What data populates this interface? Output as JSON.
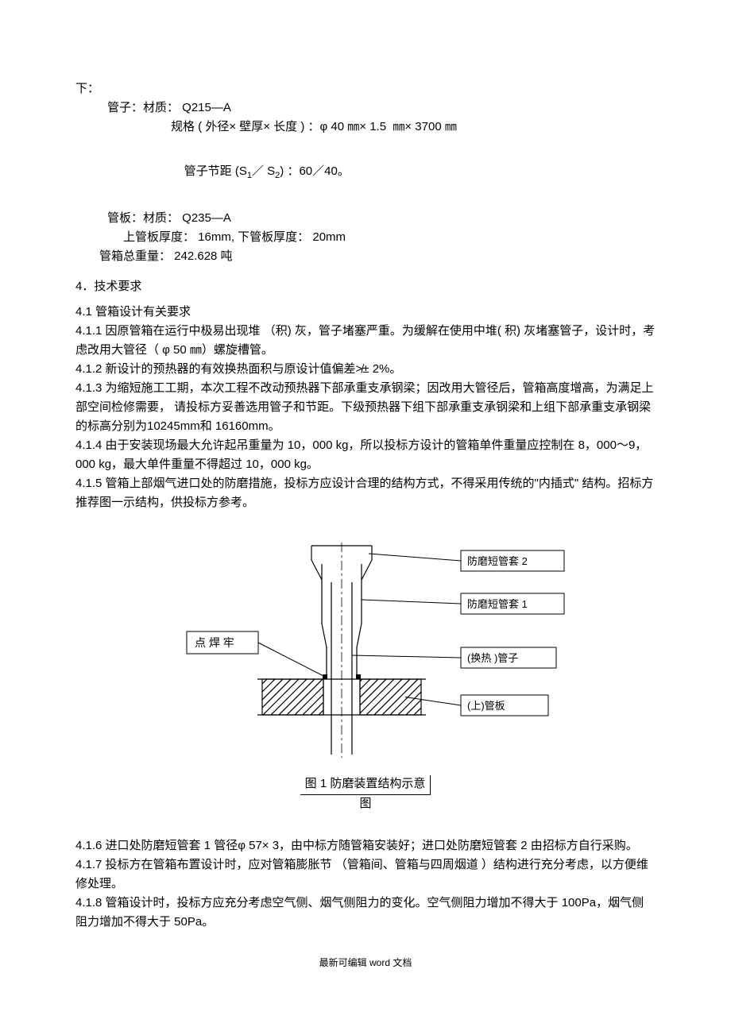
{
  "text": {
    "continuation": "下：",
    "tube_line1": "管子：材质： Q215—A",
    "tube_line2": "规格 ( 外径× 壁厚× 长度 ) ：φ 40 ㎜× 1.5  ㎜× 3700 ㎜",
    "tube_line3_a": "管子节距 (S",
    "tube_line3_b": "1",
    "tube_line3_c": "／ S",
    "tube_line3_d": "2",
    "tube_line3_e": ") ：60／40。",
    "plate_line1": "管板：材质： Q235—A",
    "plate_line2": "上管板厚度： 16mm, 下管板厚度： 20mm",
    "total_weight": "管箱总重量： 242.628 吨",
    "sec4": "4．技术要求",
    "sec41": "4.1    管箱设计有关要求",
    "p411": "4.1.1   因原管箱在运行中极易出现堆 （积) 灰，管子堵塞严重。为缓解在使用中堆( 积) 灰堵塞管子，设计时，考虑改用大管径（    φ 50 ㎜）螺旋槽管。",
    "p412": "4.1.2   新设计的预热器的有效换热面积与原设计值偏差≯±    2%。",
    "p413": "4.1.3   为缩短施工工期，本次工程不改动预热器下部承重支承钢梁；因改用大管径后，管箱高度增高，为满足上部空间检修需要，  请投标方妥善选用管子和节距。下级预热器下组下部承重支承钢梁和上组下部承重支承钢梁的标高分别为10245mm和 16160mm。",
    "p414": "4.1.4   由于安装现场最大允许起吊重量为    10，000 kg，所以投标方设计的管箱单件重量应控制在  8，000～9，000 kg，最大单件重量不得超过   10，000 kg。",
    "p415": "4.1.5   管箱上部烟气进口处的防磨措施，投标方应设计合理的结构方式，不得采用传统的\"内插式\" 结构。招标方推荐图一示结构，供投标方参考。",
    "p416": "4.1.6   进口处防磨短管套  1 管径φ 57× 3，由中标方随管箱安装好；进口处防磨短管套  2 由招标方自行采购。",
    "p417": "4.1.7   投标方在管箱布置设计时，应对管箱膨胀节  （管箱间、管箱与四周烟道 ）结构进行充分考虑，以方便维修处理。",
    "p418": "4.1.8   管箱设计时，投标方应充分考虑空气侧、烟气侧阻力的变化。空气侧阻力增加不得大于  100Pa，烟气侧阻力增加不得大于   50Pa。",
    "footer": "最新可编辑  word 文档"
  },
  "diagram": {
    "caption_main": "图 1    防磨装置结构示意",
    "caption_sub": "图",
    "labels": {
      "spot_weld": "点 焊 牢",
      "sleeve2": "防磨短管套  2",
      "sleeve1": "防磨短管套  1",
      "tube": "(换热 )管子",
      "plate": "(上)管板"
    },
    "style": {
      "stroke": "#000000",
      "stroke_width": 1.2,
      "hatch_spacing": 10,
      "background": "#ffffff",
      "label_font_size": 13,
      "spot_weld_font_size": 14
    }
  }
}
